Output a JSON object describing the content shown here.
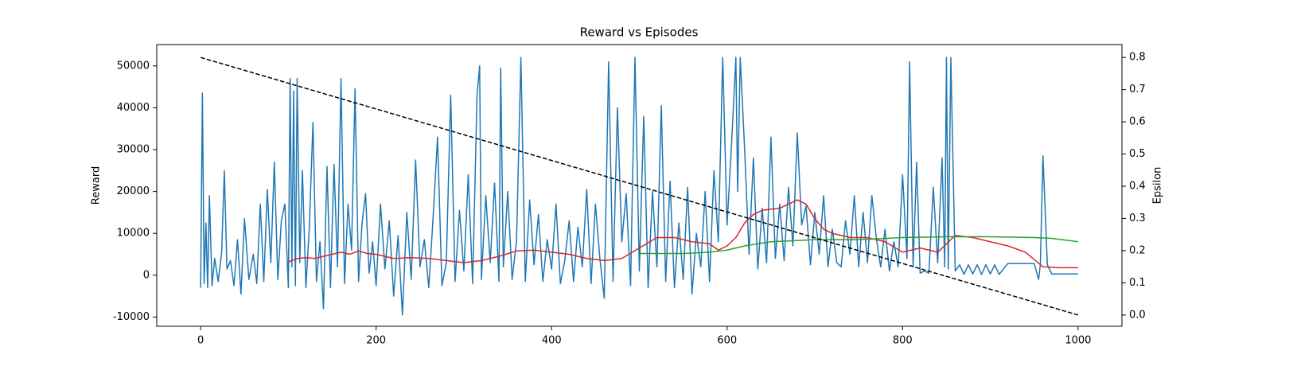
{
  "chart_data": {
    "type": "line",
    "title": "Reward vs Episodes",
    "ylabel": "Reward",
    "y2label": "Epsilon",
    "xlim": [
      -50,
      1050
    ],
    "ylim": [
      -12200,
      55100
    ],
    "y2lim": [
      -0.035,
      0.84
    ],
    "xticks": [
      0,
      200,
      400,
      600,
      800,
      1000
    ],
    "yticks": [
      -10000,
      0,
      10000,
      20000,
      30000,
      40000,
      50000
    ],
    "y2ticks": [
      {
        "value": 0,
        "label": "0.0"
      },
      0.1,
      0.2,
      0.3,
      0.4,
      0.5,
      0.6,
      0.7,
      0.8
    ],
    "grid": false,
    "series": [
      {
        "color": "#1f77b4",
        "axis": "y",
        "linestyle": "solid",
        "x": [
          0,
          2,
          4,
          6,
          8,
          10,
          13,
          16,
          20,
          24,
          27,
          30,
          34,
          38,
          42,
          46,
          50,
          55,
          60,
          64,
          68,
          72,
          76,
          80,
          84,
          88,
          92,
          96,
          100,
          102,
          104,
          106,
          108,
          110,
          113,
          116,
          120,
          124,
          128,
          132,
          136,
          140,
          144,
          148,
          152,
          156,
          160,
          164,
          168,
          172,
          176,
          180,
          184,
          188,
          192,
          196,
          200,
          205,
          210,
          215,
          220,
          225,
          230,
          235,
          240,
          245,
          250,
          255,
          260,
          265,
          270,
          275,
          280,
          285,
          290,
          295,
          300,
          305,
          310,
          315,
          318,
          320,
          325,
          330,
          335,
          340,
          342,
          345,
          350,
          355,
          360,
          365,
          370,
          375,
          380,
          385,
          390,
          395,
          400,
          405,
          410,
          415,
          420,
          425,
          430,
          435,
          440,
          445,
          450,
          455,
          460,
          465,
          470,
          475,
          480,
          485,
          490,
          495,
          500,
          505,
          510,
          515,
          520,
          525,
          530,
          535,
          540,
          545,
          550,
          555,
          560,
          565,
          570,
          575,
          580,
          585,
          590,
          595,
          600,
          605,
          610,
          612,
          615,
          620,
          625,
          630,
          635,
          640,
          645,
          650,
          655,
          660,
          665,
          670,
          675,
          680,
          685,
          690,
          695,
          700,
          705,
          710,
          715,
          720,
          725,
          730,
          735,
          740,
          745,
          750,
          755,
          760,
          765,
          770,
          775,
          780,
          785,
          790,
          795,
          800,
          805,
          808,
          812,
          816,
          820,
          825,
          830,
          835,
          840,
          845,
          848,
          850,
          852,
          855,
          860,
          865,
          870,
          875,
          880,
          885,
          890,
          895,
          900,
          905,
          910,
          920,
          930,
          940,
          950,
          955,
          957,
          960,
          965,
          970,
          980,
          990,
          1000
        ],
        "values": [
          -3000,
          43500,
          -2000,
          12500,
          -3000,
          19000,
          -2500,
          4000,
          -1500,
          5500,
          25000,
          1500,
          3500,
          -2500,
          8500,
          -4500,
          13500,
          -1000,
          5000,
          -2000,
          17000,
          -1500,
          20500,
          3000,
          27000,
          -1000,
          13000,
          17000,
          -3000,
          47000,
          2000,
          44000,
          -2500,
          47000,
          3000,
          25000,
          -3000,
          12000,
          36500,
          -1500,
          8000,
          -8000,
          26000,
          -3000,
          26500,
          2000,
          47000,
          -2000,
          17000,
          6000,
          44500,
          -1500,
          12500,
          19500,
          500,
          8000,
          -2500,
          17000,
          1500,
          13000,
          -5000,
          9500,
          -9500,
          15000,
          -1000,
          27500,
          2000,
          8500,
          -3000,
          14000,
          33000,
          -2500,
          3000,
          43000,
          -1500,
          15500,
          1000,
          24000,
          -2000,
          43000,
          50000,
          -1000,
          19000,
          3000,
          22000,
          -1500,
          49500,
          2000,
          20000,
          -1000,
          8000,
          52000,
          -1500,
          18000,
          2500,
          14500,
          -1500,
          8500,
          1500,
          17000,
          -2000,
          3500,
          13000,
          -1500,
          11500,
          2000,
          20500,
          -2000,
          17000,
          4000,
          -5500,
          51000,
          -1500,
          40000,
          8000,
          19500,
          -2500,
          52000,
          1000,
          38000,
          -3000,
          20000,
          2000,
          40500,
          -1500,
          22500,
          -3000,
          12500,
          -1000,
          21000,
          -4500,
          10000,
          2000,
          20000,
          -1500,
          25000,
          8000,
          52000,
          12000,
          31000,
          52000,
          20000,
          52000,
          30000,
          5000,
          28000,
          1500,
          16000,
          3000,
          33000,
          4000,
          17000,
          3500,
          21000,
          7000,
          34000,
          12000,
          16500,
          2500,
          15000,
          5000,
          19000,
          2000,
          11000,
          3000,
          2000,
          13000,
          5000,
          19000,
          2000,
          15000,
          3000,
          19000,
          9000,
          2000,
          11000,
          1000,
          8000,
          2000,
          24000,
          4000,
          51000,
          2000,
          27000,
          500,
          1000,
          500,
          21000,
          3000,
          28000,
          2000,
          52000,
          1500,
          52000,
          1000,
          2500,
          200,
          2500,
          300,
          2500,
          200,
          2500,
          300,
          2500,
          200,
          2800,
          2800,
          2800,
          2800,
          -1000,
          2500,
          28500,
          2500,
          300,
          300,
          300,
          300
        ]
      },
      {
        "color": "#d62728",
        "axis": "y",
        "linestyle": "solid",
        "x": [
          100,
          110,
          120,
          130,
          140,
          150,
          160,
          170,
          180,
          190,
          200,
          220,
          240,
          260,
          280,
          300,
          320,
          340,
          360,
          380,
          400,
          420,
          440,
          460,
          480,
          500,
          520,
          540,
          560,
          580,
          590,
          600,
          610,
          620,
          630,
          640,
          660,
          680,
          690,
          700,
          710,
          720,
          740,
          760,
          780,
          800,
          820,
          840,
          860,
          880,
          900,
          920,
          940,
          960,
          980,
          1000
        ],
        "values": [
          3200,
          4000,
          4200,
          4000,
          4500,
          5000,
          5500,
          5000,
          5800,
          5200,
          5000,
          4000,
          4200,
          4000,
          3500,
          3000,
          3500,
          4500,
          5800,
          6000,
          5500,
          5000,
          4000,
          3500,
          4000,
          6500,
          9000,
          9000,
          8000,
          7500,
          6000,
          7000,
          9000,
          12500,
          14500,
          15500,
          16000,
          18000,
          17000,
          13500,
          11000,
          10000,
          9000,
          9000,
          8000,
          5500,
          6500,
          5500,
          9500,
          9000,
          8000,
          7000,
          5500,
          2000,
          1800,
          1800
        ]
      },
      {
        "color": "#2ca02c",
        "axis": "y",
        "linestyle": "solid",
        "x": [
          500,
          550,
          580,
          600,
          620,
          650,
          700,
          750,
          800,
          850,
          900,
          950,
          970,
          1000
        ],
        "values": [
          5200,
          5200,
          5500,
          6000,
          7000,
          8000,
          8500,
          8500,
          9000,
          9200,
          9200,
          9000,
          8800,
          8000
        ]
      },
      {
        "color": "#000000",
        "axis": "y2",
        "linestyle": "dashed",
        "x": [
          0,
          1000
        ],
        "values": [
          0.8,
          0.0
        ]
      }
    ]
  }
}
